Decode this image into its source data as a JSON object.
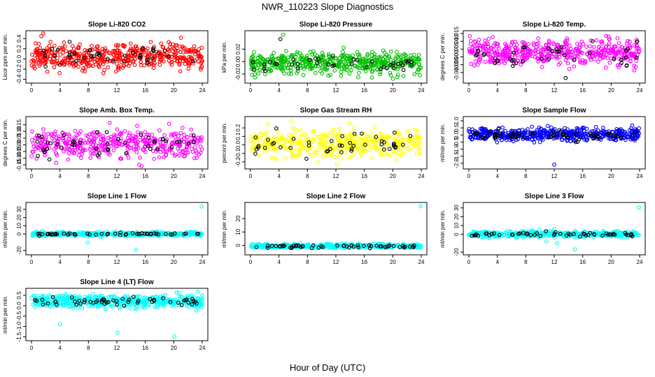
{
  "figure": {
    "title": "NWR_110223  Slope Diagnostics",
    "xlabel": "Hour of Day (UTC)"
  },
  "chart_data": [
    {
      "type": "scatter",
      "title": "Slope Li-820 CO2",
      "ylabel": "Licor ppm per min.",
      "color": "#ff0000",
      "xlim": [
        0,
        24
      ],
      "ylim": [
        -0.42,
        0.5
      ],
      "xticks": [
        0,
        4,
        8,
        12,
        16,
        20,
        24
      ],
      "yticks": [
        -0.4,
        -0.2,
        0.0,
        0.2,
        0.4
      ],
      "yticklabels": [
        "-0.4",
        "-0.2",
        "0.0",
        "0.2",
        "0.4"
      ],
      "cloud": {
        "center": 0.05,
        "spread": 0.13,
        "n": 480,
        "seed": 11
      },
      "black_points": {
        "center": 0.05,
        "spread": 0.1,
        "n": 40,
        "seed": 21
      },
      "outliers": []
    },
    {
      "type": "scatter",
      "title": "Slope Li-820 Pressure",
      "ylabel": "kPa per min.",
      "color": "#00c000",
      "xlim": [
        0,
        24
      ],
      "ylim": [
        -0.03,
        0.045
      ],
      "xticks": [
        0,
        4,
        8,
        12,
        16,
        20,
        24
      ],
      "yticks": [
        -0.02,
        0.0,
        0.02
      ],
      "yticklabels": [
        "-0.02",
        "0.00",
        "0.02"
      ],
      "cloud": {
        "center": -0.002,
        "spread": 0.009,
        "n": 480,
        "seed": 12
      },
      "black_points": {
        "center": -0.004,
        "spread": 0.006,
        "n": 40,
        "seed": 22
      },
      "outliers": [
        {
          "x": 4.6,
          "y": 0.043,
          "black": false
        },
        {
          "x": 4.2,
          "y": 0.036,
          "black": true
        },
        {
          "x": 23.8,
          "y": -0.022,
          "black": false
        }
      ]
    },
    {
      "type": "scatter",
      "title": "Slope Li-820 Temp.",
      "ylabel": "degrees C per min.",
      "color": "#ff00ff",
      "xlim": [
        0,
        24
      ],
      "ylim": [
        -0.015,
        0.015
      ],
      "xticks": [
        0,
        4,
        8,
        12,
        16,
        20,
        24
      ],
      "yticks": [
        -0.01,
        -0.005,
        0.0,
        0.005,
        0.01,
        0.015
      ],
      "yticklabels": [
        "-0.010",
        "-0.005",
        "0.000",
        "0.005",
        "0.010",
        "0.015"
      ],
      "cloud": {
        "center": 0.003,
        "spread": 0.004,
        "n": 480,
        "seed": 13
      },
      "black_points": {
        "center": 0.002,
        "spread": 0.0035,
        "n": 40,
        "seed": 23
      },
      "outliers": [
        {
          "x": 13.6,
          "y": -0.0135,
          "black": true
        },
        {
          "x": 19.3,
          "y": 0.0135,
          "black": false
        }
      ]
    },
    {
      "type": "scatter",
      "title": "Slope Amb. Box Temp.",
      "ylabel": "degrees C per min.",
      "color": "#ff00ff",
      "xlim": [
        0,
        24
      ],
      "ylim": [
        -0.16,
        0.19
      ],
      "xticks": [
        0,
        4,
        8,
        12,
        16,
        20,
        24
      ],
      "yticks": [
        -0.15,
        -0.1,
        -0.05,
        0.0,
        0.05,
        0.1,
        0.15
      ],
      "yticklabels": [
        "-0.15",
        "-0.10",
        "-0.05",
        "0.00",
        "0.05",
        "0.10",
        "0.15"
      ],
      "cloud": {
        "center": 0.01,
        "spread": 0.055,
        "n": 420,
        "seed": 14
      },
      "black_points": {
        "center": 0.0,
        "spread": 0.05,
        "n": 45,
        "seed": 24
      },
      "outliers": []
    },
    {
      "type": "scatter",
      "title": "Slope Gas Stream RH",
      "ylabel": "percent per min.",
      "color": "#ffff00",
      "xlim": [
        0,
        24
      ],
      "ylim": [
        -0.25,
        0.3
      ],
      "xticks": [
        0,
        4,
        8,
        12,
        16,
        20,
        24
      ],
      "yticks": [
        -0.2,
        -0.1,
        0.0,
        0.1,
        0.2
      ],
      "yticklabels": [
        "-0.2",
        "-0.1",
        "0.0",
        "0.1",
        "0.2"
      ],
      "cloud": {
        "center": 0.02,
        "spread": 0.08,
        "n": 420,
        "seed": 15
      },
      "black_points": {
        "center": 0.0,
        "spread": 0.07,
        "n": 45,
        "seed": 25
      },
      "outliers": []
    },
    {
      "type": "scatter",
      "title": "Slope Sample Flow",
      "ylabel": "ml/min per min.",
      "color": "#0000ff",
      "xlim": [
        0,
        24
      ],
      "ylim": [
        -2.2,
        1.1
      ],
      "xticks": [
        0,
        4,
        8,
        12,
        16,
        20,
        24
      ],
      "yticks": [
        -2.0,
        -1.5,
        -1.0,
        -0.5,
        0.0,
        0.5,
        1.0
      ],
      "yticklabels": [
        "-2.0",
        "-1.5",
        "-1.0",
        "-0.5",
        "0.0",
        "0.5",
        "1.0"
      ],
      "cloud": {
        "center": 0.02,
        "spread": 0.22,
        "n": 480,
        "seed": 16
      },
      "black_points": {
        "center": 0.0,
        "spread": 0.2,
        "n": 60,
        "seed": 26
      },
      "outliers": [
        {
          "x": 12.0,
          "y": -2.1,
          "black": false
        }
      ]
    },
    {
      "type": "scatter",
      "title": "Slope Line 1 Flow",
      "ylabel": "ml/min per min.",
      "color": "#00ffff",
      "xlim": [
        0,
        24
      ],
      "ylim": [
        -22,
        35
      ],
      "xticks": [
        0,
        4,
        8,
        12,
        16,
        20,
        24
      ],
      "yticks": [
        -20,
        0,
        10,
        20,
        30
      ],
      "yticklabels": [
        "-20",
        "0",
        "10",
        "20",
        "30"
      ],
      "cloud": {
        "center": 0.0,
        "spread": 1.2,
        "n": 420,
        "seed": 17
      },
      "black_points": {
        "center": 0.0,
        "spread": 0.6,
        "n": 55,
        "seed": 27
      },
      "outliers": [
        {
          "x": 23.9,
          "y": 33.5,
          "black": false
        },
        {
          "x": 14.7,
          "y": -19.5,
          "black": false
        },
        {
          "x": 7.9,
          "y": -10.5,
          "black": false
        }
      ]
    },
    {
      "type": "scatter",
      "title": "Slope Line 2 Flow",
      "ylabel": "ml/min per min.",
      "color": "#00ffff",
      "xlim": [
        0,
        24
      ],
      "ylim": [
        -5,
        30
      ],
      "xticks": [
        0,
        4,
        8,
        12,
        16,
        20,
        24
      ],
      "yticks": [
        0,
        10,
        20
      ],
      "yticklabels": [
        "0",
        "10",
        "20"
      ],
      "cloud": {
        "center": -0.5,
        "spread": 0.8,
        "n": 420,
        "seed": 18
      },
      "black_points": {
        "center": -0.8,
        "spread": 0.6,
        "n": 55,
        "seed": 28
      },
      "outliers": [
        {
          "x": 23.9,
          "y": 29.2,
          "black": false
        }
      ]
    },
    {
      "type": "scatter",
      "title": "Slope Line 3 Flow",
      "ylabel": "ml/min per min.",
      "color": "#00ffff",
      "xlim": [
        0,
        24
      ],
      "ylim": [
        -20,
        33
      ],
      "xticks": [
        0,
        4,
        8,
        12,
        16,
        20,
        24
      ],
      "yticks": [
        -20,
        0,
        10,
        20,
        30
      ],
      "yticklabels": [
        "-20",
        "0",
        "10",
        "20",
        "30"
      ],
      "cloud": {
        "center": 0.3,
        "spread": 1.8,
        "n": 420,
        "seed": 19
      },
      "black_points": {
        "center": 0.0,
        "spread": 1.2,
        "n": 55,
        "seed": 29
      },
      "outliers": [
        {
          "x": 23.9,
          "y": 30.5,
          "black": false
        },
        {
          "x": 14.9,
          "y": -17.0,
          "black": false
        },
        {
          "x": 12.4,
          "y": -10.0,
          "black": false
        },
        {
          "x": 10.9,
          "y": -8.0,
          "black": false
        }
      ]
    },
    {
      "type": "scatter",
      "title": "Slope Line 4 (LT) Flow",
      "ylabel": "ml/min per min.",
      "color": "#00ffff",
      "xlim": [
        0,
        24
      ],
      "ylim": [
        -1.55,
        0.7
      ],
      "xticks": [
        0,
        4,
        8,
        12,
        16,
        20,
        24
      ],
      "yticks": [
        -1.5,
        -1.0,
        -0.5,
        0.0,
        0.5
      ],
      "yticklabels": [
        "-1.5",
        "-1.0",
        "-0.5",
        "0.0",
        "0.5"
      ],
      "cloud": {
        "center": 0.22,
        "spread": 0.16,
        "n": 480,
        "seed": 20
      },
      "black_points": {
        "center": 0.2,
        "spread": 0.12,
        "n": 55,
        "seed": 30
      },
      "outliers": [
        {
          "x": 12.1,
          "y": -1.3,
          "black": false
        },
        {
          "x": 20.1,
          "y": -1.48,
          "black": false
        },
        {
          "x": 4.0,
          "y": -0.9,
          "black": false
        }
      ]
    }
  ]
}
